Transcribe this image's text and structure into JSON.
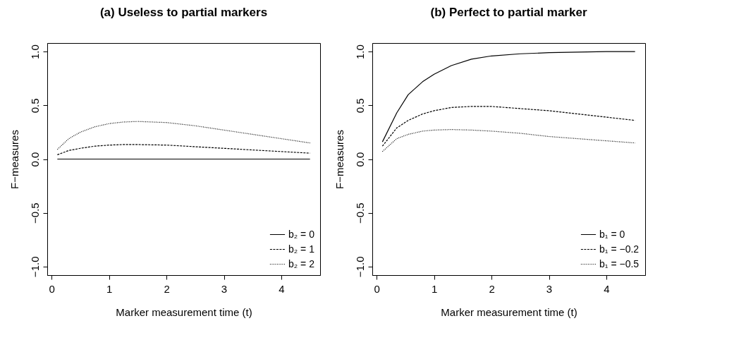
{
  "chart_data": [
    {
      "type": "line",
      "title": "(a) Useless to partial markers",
      "xlabel": "Marker measurement time (t)",
      "ylabel": "F−measures",
      "x": [
        0.1,
        0.3,
        0.5,
        0.75,
        1,
        1.25,
        1.5,
        2,
        2.5,
        3,
        3.5,
        4,
        4.5
      ],
      "xlim": [
        -0.076,
        4.676
      ],
      "ylim": [
        -1.08,
        1.08
      ],
      "xticks": [
        0,
        1,
        2,
        3,
        4
      ],
      "yticks": [
        {
          "value": -1,
          "label": "−1.0"
        },
        {
          "value": -0.5,
          "label": "−0.5"
        },
        {
          "value": 0,
          "label": "0.0"
        },
        {
          "value": 0.5,
          "label": "0.5"
        },
        {
          "value": 1,
          "label": "1.0"
        }
      ],
      "grid": false,
      "legend": "bottom right",
      "marker": "none",
      "series": [
        {
          "name": "b₂ = 0",
          "color": "#000000",
          "line_style": "solid",
          "values": [
            0,
            0,
            0,
            0,
            0,
            0,
            0,
            0,
            0,
            0,
            0,
            0,
            0
          ]
        },
        {
          "name": "b₂ = 1",
          "color": "#000000",
          "line_style": "dashed",
          "values": [
            0.04,
            0.08,
            0.1,
            0.12,
            0.13,
            0.135,
            0.135,
            0.13,
            0.115,
            0.1,
            0.085,
            0.07,
            0.055
          ]
        },
        {
          "name": "b₂ = 2",
          "color": "#000000",
          "line_style": "dotted",
          "values": [
            0.09,
            0.19,
            0.25,
            0.3,
            0.33,
            0.345,
            0.35,
            0.34,
            0.31,
            0.27,
            0.23,
            0.19,
            0.15
          ]
        }
      ]
    },
    {
      "type": "line",
      "title": "(b) Perfect to partial marker",
      "xlabel": "Marker measurement time (t)",
      "ylabel": "F−measures",
      "x": [
        0.1,
        0.35,
        0.55,
        0.8,
        1,
        1.3,
        1.65,
        2,
        2.5,
        3,
        3.5,
        4,
        4.5
      ],
      "xlim": [
        -0.076,
        4.676
      ],
      "ylim": [
        -1.08,
        1.08
      ],
      "xticks": [
        0,
        1,
        2,
        3,
        4
      ],
      "yticks": [
        {
          "value": -1,
          "label": "−1.0"
        },
        {
          "value": -0.5,
          "label": "−0.5"
        },
        {
          "value": 0,
          "label": "0.0"
        },
        {
          "value": 0.5,
          "label": "0.5"
        },
        {
          "value": 1,
          "label": "1.0"
        }
      ],
      "grid": false,
      "legend": "bottom right",
      "marker": "none",
      "series": [
        {
          "name": "b₁ = 0",
          "color": "#000000",
          "line_style": "solid",
          "values": [
            0.16,
            0.43,
            0.6,
            0.72,
            0.79,
            0.87,
            0.93,
            0.96,
            0.98,
            0.99,
            0.995,
            1,
            1
          ]
        },
        {
          "name": "b₁ = −0.2",
          "color": "#000000",
          "line_style": "dashed",
          "values": [
            0.12,
            0.29,
            0.36,
            0.42,
            0.45,
            0.48,
            0.49,
            0.49,
            0.47,
            0.45,
            0.42,
            0.39,
            0.36
          ]
        },
        {
          "name": "b₁ = −0.5",
          "color": "#000000",
          "line_style": "dotted",
          "values": [
            0.07,
            0.19,
            0.23,
            0.26,
            0.27,
            0.275,
            0.27,
            0.26,
            0.24,
            0.21,
            0.19,
            0.17,
            0.15
          ]
        }
      ]
    }
  ]
}
